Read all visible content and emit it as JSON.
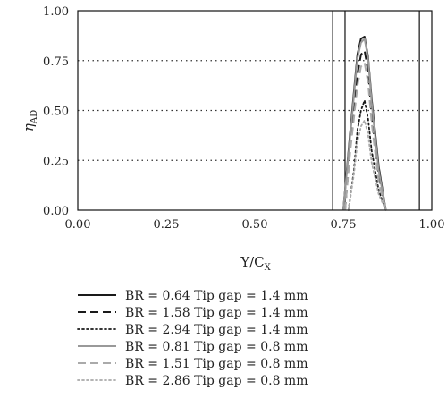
{
  "chart_data": {
    "type": "line",
    "xlabel_main": "Y/C",
    "xlabel_sub": "X",
    "ylabel_main": "η",
    "ylabel_sub": "AD",
    "xlim": [
      0.0,
      1.0
    ],
    "ylim": [
      0.0,
      1.0
    ],
    "x_ticks": [
      "0.00",
      "0.25",
      "0.50",
      "0.75",
      "1.00"
    ],
    "y_ticks": [
      "0.00",
      "0.25",
      "0.50",
      "0.75",
      "1.00"
    ],
    "y_gridlines": [
      0.25,
      0.5,
      0.75
    ],
    "vertical_lines": [
      0.72,
      0.755,
      0.965
    ],
    "legend_position": "below",
    "series": [
      {
        "name": "BR = 0.64 Tip gap = 1.4 mm",
        "color": "#1a1a1a",
        "dash": "solid",
        "x": [
          0.75,
          0.77,
          0.79,
          0.8,
          0.81,
          0.82,
          0.83,
          0.85,
          0.87
        ],
        "y": [
          0.0,
          0.4,
          0.78,
          0.86,
          0.87,
          0.77,
          0.56,
          0.22,
          0.0
        ]
      },
      {
        "name": "BR = 1.58 Tip gap = 1.4 mm",
        "color": "#1a1a1a",
        "dash": "long-dash",
        "x": [
          0.755,
          0.77,
          0.79,
          0.8,
          0.81,
          0.82,
          0.83,
          0.85,
          0.87
        ],
        "y": [
          0.0,
          0.32,
          0.68,
          0.78,
          0.8,
          0.7,
          0.48,
          0.18,
          0.0
        ]
      },
      {
        "name": "BR = 2.94 Tip gap = 1.4 mm",
        "color": "#1a1a1a",
        "dash": "dotted",
        "x": [
          0.765,
          0.78,
          0.79,
          0.8,
          0.81,
          0.82,
          0.83,
          0.85,
          0.87
        ],
        "y": [
          0.0,
          0.2,
          0.4,
          0.5,
          0.55,
          0.46,
          0.3,
          0.1,
          0.0
        ]
      },
      {
        "name": "BR = 0.81 Tip gap = 0.8 mm",
        "color": "#999999",
        "dash": "solid",
        "x": [
          0.75,
          0.77,
          0.79,
          0.8,
          0.81,
          0.82,
          0.83,
          0.85,
          0.87
        ],
        "y": [
          0.0,
          0.38,
          0.76,
          0.84,
          0.86,
          0.76,
          0.54,
          0.2,
          0.0
        ]
      },
      {
        "name": "BR = 1.51 Tip gap = 0.8 mm",
        "color": "#aaaaaa",
        "dash": "long-dash",
        "x": [
          0.755,
          0.77,
          0.79,
          0.8,
          0.81,
          0.82,
          0.83,
          0.85,
          0.87
        ],
        "y": [
          0.0,
          0.3,
          0.62,
          0.72,
          0.74,
          0.64,
          0.44,
          0.14,
          0.0
        ]
      },
      {
        "name": "BR = 2.86 Tip gap = 0.8 mm",
        "color": "#aaaaaa",
        "dash": "dotted",
        "x": [
          0.765,
          0.78,
          0.79,
          0.8,
          0.81,
          0.82,
          0.83,
          0.85,
          0.87
        ],
        "y": [
          0.0,
          0.18,
          0.34,
          0.42,
          0.45,
          0.38,
          0.24,
          0.08,
          0.0
        ]
      }
    ]
  }
}
